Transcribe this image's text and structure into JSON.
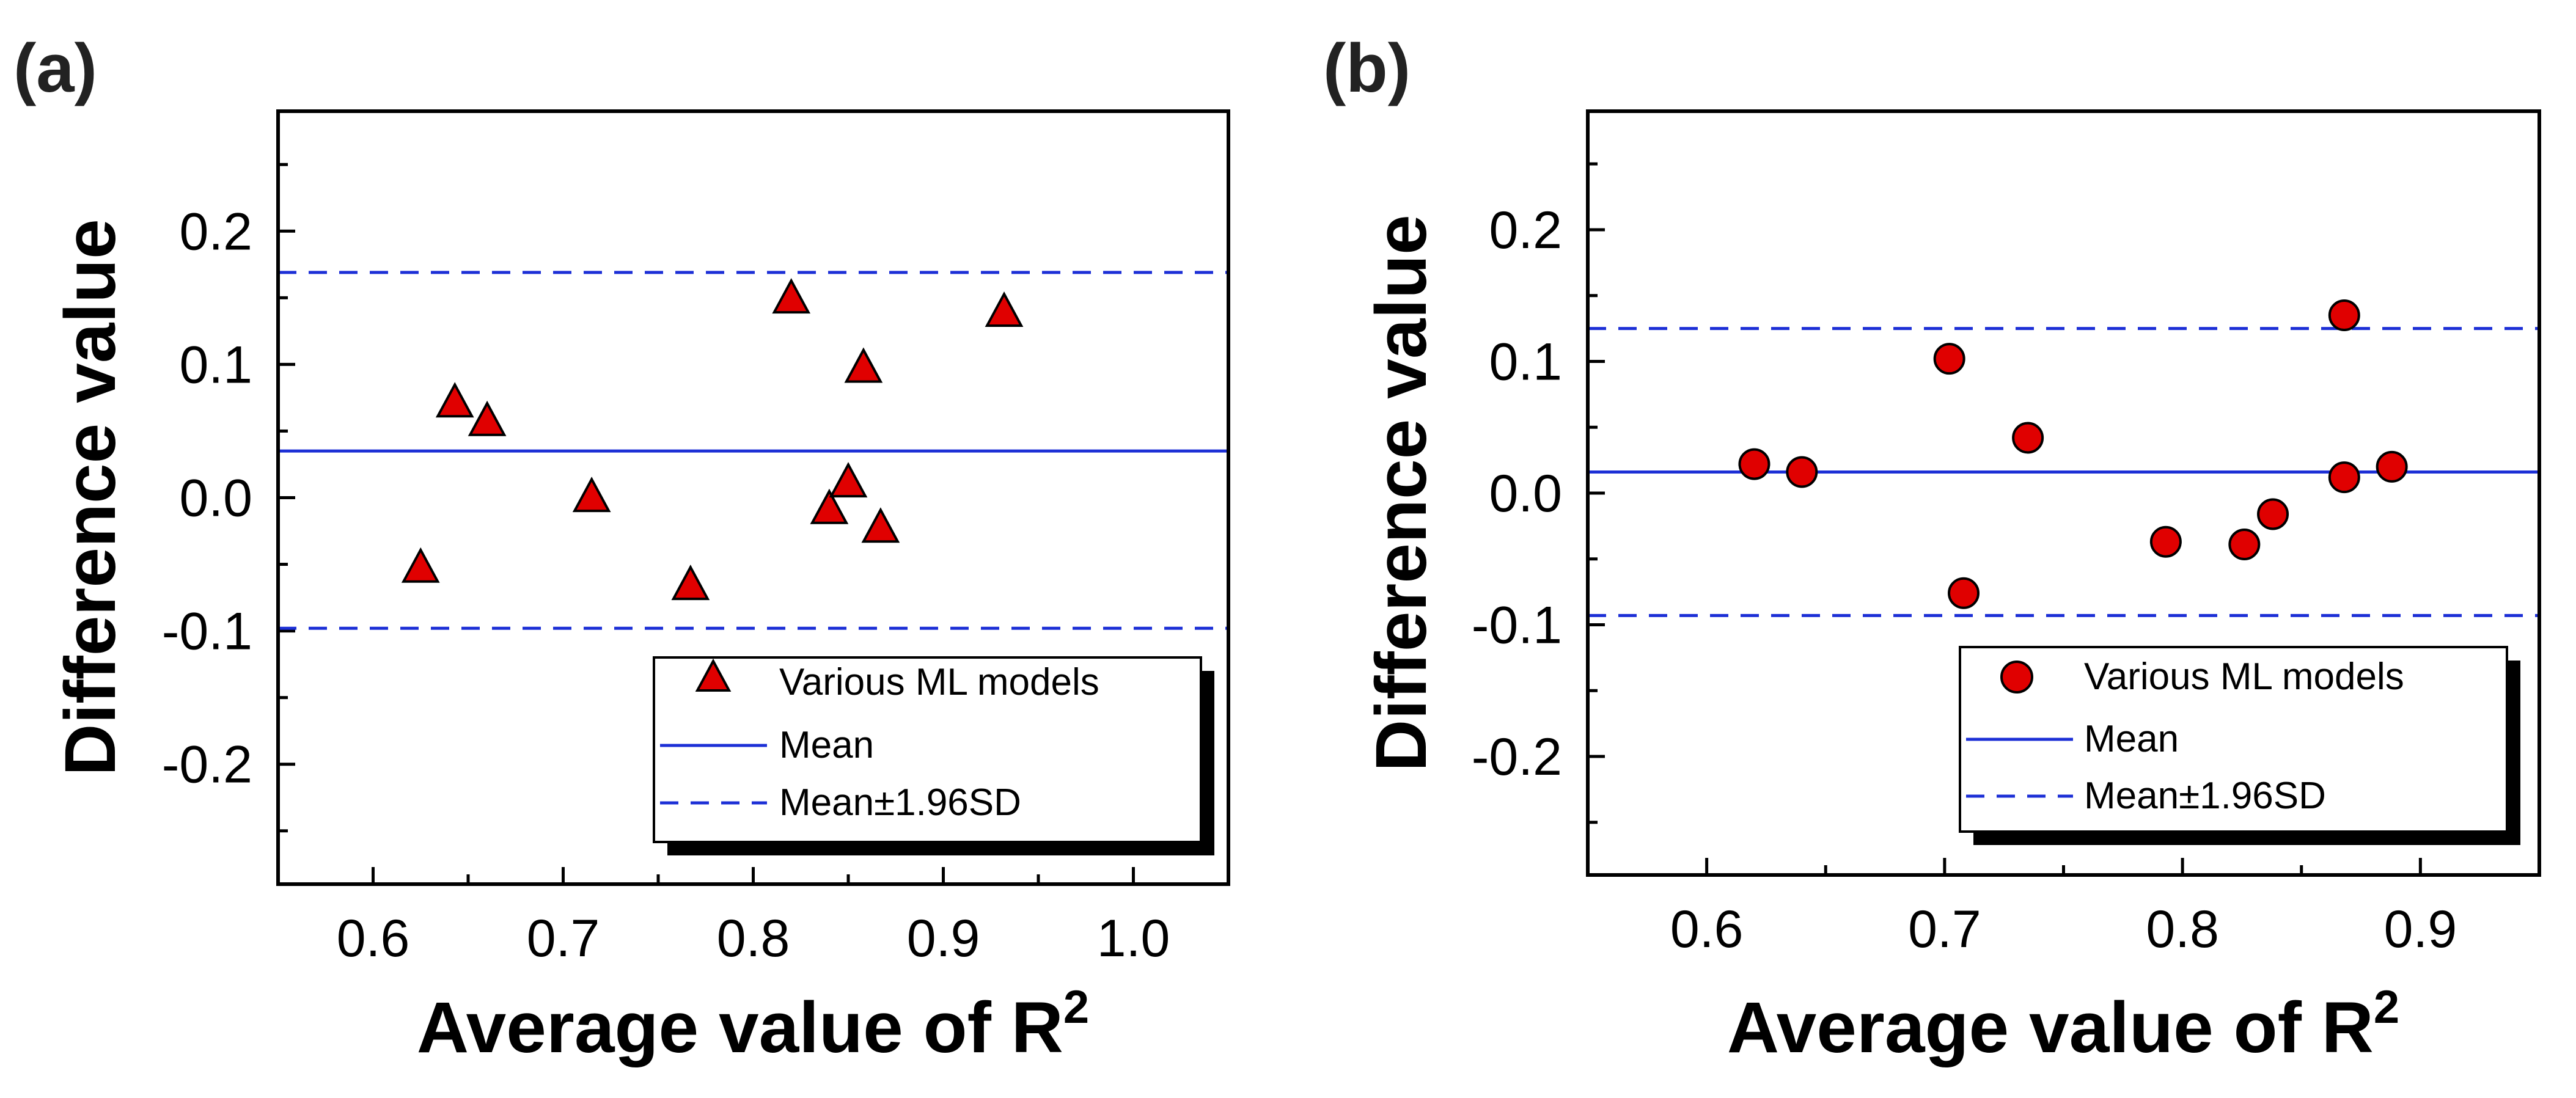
{
  "colors": {
    "marker_fill": "#e00000",
    "line": "#1c2fd6",
    "axis": "#000000"
  },
  "chart_data": [
    {
      "panel_label": "(a)",
      "type": "scatter",
      "marker": "triangle",
      "xlabel": "Average value of R",
      "xlabel_sup": "2",
      "ylabel": "Difference value",
      "xlim": [
        0.55,
        1.05
      ],
      "ylim": [
        -0.29,
        0.29
      ],
      "x_ticks": [
        0.6,
        0.7,
        0.8,
        0.9,
        1.0
      ],
      "x_tick_labels": [
        "0.6",
        "0.7",
        "0.8",
        "0.9",
        "1.0"
      ],
      "y_ticks": [
        0.2,
        0.1,
        0.0,
        -0.1,
        -0.2
      ],
      "y_tick_labels": [
        "0.2",
        "0.1",
        "0.0",
        "-0.1",
        "-0.2"
      ],
      "points": [
        {
          "x": 0.625,
          "y": -0.052
        },
        {
          "x": 0.643,
          "y": 0.072
        },
        {
          "x": 0.66,
          "y": 0.058
        },
        {
          "x": 0.715,
          "y": 0.001
        },
        {
          "x": 0.767,
          "y": -0.065
        },
        {
          "x": 0.82,
          "y": 0.15
        },
        {
          "x": 0.84,
          "y": -0.008
        },
        {
          "x": 0.85,
          "y": 0.012
        },
        {
          "x": 0.858,
          "y": 0.098
        },
        {
          "x": 0.867,
          "y": -0.022
        },
        {
          "x": 0.932,
          "y": 0.14
        }
      ],
      "mean": 0.035,
      "upper": 0.169,
      "lower": -0.098,
      "legend": {
        "scatter_label": "Various ML models",
        "mean_label": "Mean",
        "sd_label": "Mean±1.96SD"
      }
    },
    {
      "panel_label": "(b)",
      "type": "scatter",
      "marker": "circle",
      "xlabel": "Average value of R",
      "xlabel_sup": "2",
      "ylabel": "Difference value",
      "xlim": [
        0.55,
        0.95
      ],
      "ylim": [
        -0.29,
        0.29
      ],
      "x_ticks": [
        0.6,
        0.7,
        0.8,
        0.9
      ],
      "x_tick_labels": [
        "0.6",
        "0.7",
        "0.8",
        "0.9"
      ],
      "y_ticks": [
        0.2,
        0.1,
        0.0,
        -0.1,
        -0.2
      ],
      "y_tick_labels": [
        "0.2",
        "0.1",
        "0.0",
        "-0.1",
        "-0.2"
      ],
      "points": [
        {
          "x": 0.62,
          "y": 0.022
        },
        {
          "x": 0.64,
          "y": 0.016
        },
        {
          "x": 0.702,
          "y": 0.102
        },
        {
          "x": 0.708,
          "y": -0.076
        },
        {
          "x": 0.735,
          "y": 0.042
        },
        {
          "x": 0.793,
          "y": -0.037
        },
        {
          "x": 0.826,
          "y": -0.039
        },
        {
          "x": 0.838,
          "y": -0.016
        },
        {
          "x": 0.868,
          "y": 0.135
        },
        {
          "x": 0.868,
          "y": 0.012
        },
        {
          "x": 0.888,
          "y": 0.02
        }
      ],
      "mean": 0.016,
      "upper": 0.125,
      "lower": -0.093,
      "legend": {
        "scatter_label": "Various ML models",
        "mean_label": "Mean",
        "sd_label": "Mean±1.96SD"
      }
    }
  ]
}
